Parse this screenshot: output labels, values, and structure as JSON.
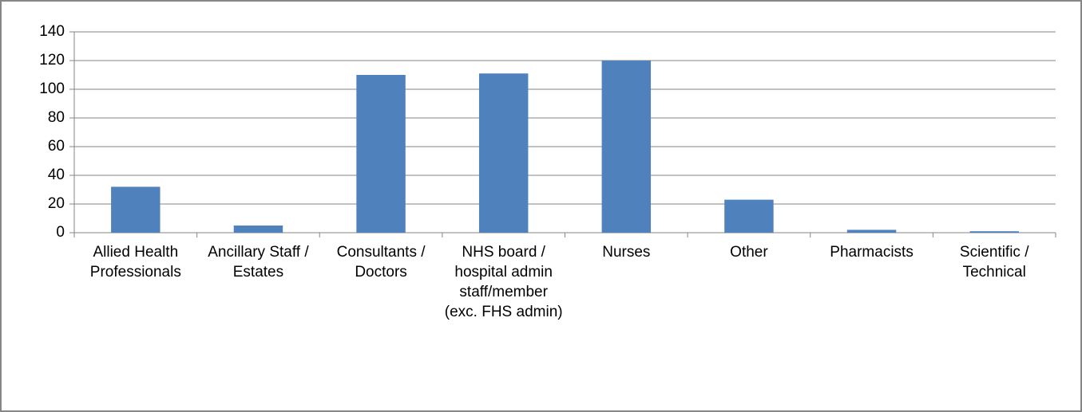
{
  "chart_data": {
    "type": "bar",
    "categories": [
      "Allied Health Professionals",
      "Ancillary Staff / Estates",
      "Consultants / Doctors",
      "NHS board / hospital admin staff/member (exc. FHS admin)",
      "Nurses",
      "Other",
      "Pharmacists",
      "Scientific / Technical"
    ],
    "values": [
      32,
      5,
      110,
      111,
      120,
      23,
      2,
      1
    ],
    "color": "#4f81bd",
    "ylim": [
      0,
      140
    ],
    "yticks": [
      0,
      20,
      40,
      60,
      80,
      100,
      120,
      140
    ],
    "grid": true
  }
}
